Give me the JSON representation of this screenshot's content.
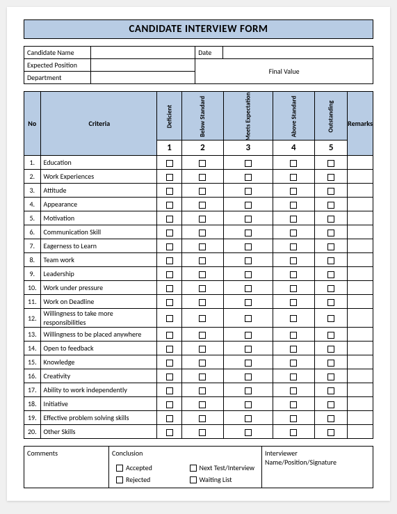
{
  "colors": {
    "header_bg": "#b8cce4",
    "border": "#000000",
    "page_bg": "#ffffff"
  },
  "title": "CANDIDATE INTERVIEW FORM",
  "info": {
    "candidate_name_label": "Candidate Name",
    "date_label": "Date",
    "expected_position_label": "Expected Position",
    "department_label": "Department",
    "final_value_label": "Final Value",
    "candidate_name": "",
    "date": "",
    "expected_position": "",
    "department": "",
    "final_value": ""
  },
  "headers": {
    "no": "No",
    "criteria": "Criteria",
    "remarks": "Remarks",
    "ratings": [
      {
        "label": "Deficient",
        "num": "1"
      },
      {
        "label": "Below Standard",
        "num": "2"
      },
      {
        "label": "Meets Expectation",
        "num": "3"
      },
      {
        "label": "Above Standard",
        "num": "4"
      },
      {
        "label": "Outstanding",
        "num": "5"
      }
    ]
  },
  "criteria": [
    {
      "no": "1.",
      "label": "Education"
    },
    {
      "no": "2.",
      "label": "Work Experiences"
    },
    {
      "no": "3.",
      "label": "Attitude"
    },
    {
      "no": "4.",
      "label": "Appearance"
    },
    {
      "no": "5.",
      "label": "Motivation"
    },
    {
      "no": "6.",
      "label": "Communication Skill"
    },
    {
      "no": "7.",
      "label": "Eagerness to Learn"
    },
    {
      "no": "8.",
      "label": "Team work"
    },
    {
      "no": "9.",
      "label": "Leadership"
    },
    {
      "no": "10.",
      "label": "Work under pressure"
    },
    {
      "no": "11.",
      "label": "Work on Deadline"
    },
    {
      "no": "12.",
      "label": "Willingness to take more responsibilities"
    },
    {
      "no": "13.",
      "label": "Willingness to be placed anywhere"
    },
    {
      "no": "14.",
      "label": "Open to feedback"
    },
    {
      "no": "15.",
      "label": "Knowledge"
    },
    {
      "no": "16.",
      "label": "Creativity"
    },
    {
      "no": "17.",
      "label": "Ability to work independently"
    },
    {
      "no": "18.",
      "label": "Initiative"
    },
    {
      "no": "19.",
      "label": "Effective problem solving skills"
    },
    {
      "no": "20.",
      "label": "Other Skills"
    }
  ],
  "footer": {
    "comments_label": "Comments",
    "conclusion_label": "Conclusion",
    "interviewer_label": "Interviewer Name/Position/Signature",
    "options": {
      "accepted": "Accepted",
      "rejected": "Rejected",
      "next_test": "Next Test/Interview",
      "waiting_list": "Waiting List"
    }
  }
}
